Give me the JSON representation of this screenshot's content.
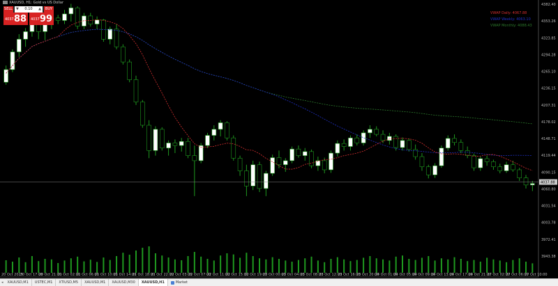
{
  "symbol": "XAUUSD, H1:  Gold vs US Dollar",
  "trade_panel": {
    "sell_label": "SELL",
    "buy_label": "BUY",
    "volume": "0.10",
    "bid_small": "4037",
    "bid_big": "88",
    "ask_small": "4037",
    "ask_big": "99"
  },
  "legend": [
    {
      "text": "VWAP Daily: 4067.88",
      "color": "#d83030"
    },
    {
      "text": "VWAP Weekly: 4063.10",
      "color": "#2030c8"
    },
    {
      "text": "VWAP Monthly: 4088.43",
      "color": "#2c7a2c"
    }
  ],
  "price_axis": {
    "labels": [
      "4382.40",
      "4353.26",
      "4323.85",
      "4294.28",
      "4265.10",
      "4236.15",
      "4207.31",
      "4178.02",
      "4148.71",
      "4119.44",
      "4090.15",
      "4060.80",
      "4031.54",
      "4003.78",
      "3972.41",
      "3943.38"
    ],
    "current_price": "4037.88"
  },
  "time_axis": [
    "20 Oct 2025",
    "20 Oct 17:00",
    "20 Oct 21:00",
    "21 Oct 02:00",
    "21 Oct 06:00",
    "21 Oct 10:00",
    "21 Oct 14:00",
    "21 Oct 18:00",
    "21 Oct 22:00",
    "22 Oct 03:00",
    "22 Oct 07:00",
    "22 Oct 11:00",
    "22 Oct 15:00",
    "22 Oct 19:00",
    "23 Oct 00:00",
    "23 Oct 04:00",
    "23 Oct 08:00",
    "23 Oct 12:00",
    "23 Oct 16:00",
    "23 Oct 20:00",
    "24 Oct 01:00",
    "24 Oct 05:00",
    "24 Oct 09:00",
    "24 Oct 13:00",
    "24 Oct 17:00",
    "24 Oct 21:00",
    "27 Oct 02:00",
    "27 Oct 06:00",
    "27 Oct 10:00"
  ],
  "tabs": [
    "XAUUSD,M1",
    "USTEC,M1",
    "XTIUSD,M5",
    "XAUUSD,M1",
    "XAUUSD,M30",
    "XAUUSD,H1"
  ],
  "active_tab_index": 5,
  "market_tab": "Market",
  "colors": {
    "bull": "#ffffff",
    "bear": "#000000",
    "wick": "#1f9a1f",
    "daily": "#d83030",
    "weekly": "#2030c8",
    "monthly": "#2c7a2c",
    "volume": "#1f9a1f"
  },
  "chart_data": {
    "type": "candlestick",
    "title": "XAUUSD, H1:  Gold vs US Dollar",
    "ylim": [
      3930,
      4392
    ],
    "candles": [
      [
        4235,
        4268,
        4230,
        4260
      ],
      [
        4260,
        4300,
        4255,
        4295
      ],
      [
        4295,
        4330,
        4285,
        4320
      ],
      [
        4320,
        4342,
        4305,
        4335
      ],
      [
        4335,
        4370,
        4325,
        4362
      ],
      [
        4362,
        4365,
        4320,
        4335
      ],
      [
        4335,
        4360,
        4318,
        4355
      ],
      [
        4355,
        4368,
        4340,
        4362
      ],
      [
        4362,
        4368,
        4350,
        4357
      ],
      [
        4357,
        4378,
        4350,
        4370
      ],
      [
        4370,
        4390,
        4355,
        4382
      ],
      [
        4382,
        4385,
        4340,
        4346
      ],
      [
        4346,
        4372,
        4340,
        4366
      ],
      [
        4366,
        4372,
        4345,
        4350
      ],
      [
        4350,
        4365,
        4340,
        4358
      ],
      [
        4358,
        4360,
        4315,
        4320
      ],
      [
        4320,
        4345,
        4310,
        4340
      ],
      [
        4340,
        4350,
        4300,
        4305
      ],
      [
        4305,
        4310,
        4270,
        4275
      ],
      [
        4275,
        4280,
        4235,
        4240
      ],
      [
        4240,
        4248,
        4190,
        4196
      ],
      [
        4196,
        4200,
        4145,
        4150
      ],
      [
        4150,
        4160,
        4085,
        4100
      ],
      [
        4100,
        4148,
        4090,
        4142
      ],
      [
        4142,
        4146,
        4100,
        4105
      ],
      [
        4105,
        4120,
        4090,
        4115
      ],
      [
        4115,
        4122,
        4095,
        4110
      ],
      [
        4110,
        4125,
        4098,
        4118
      ],
      [
        4118,
        4125,
        4085,
        4090
      ],
      [
        4090,
        4110,
        4010,
        4080
      ],
      [
        4080,
        4115,
        4075,
        4110
      ],
      [
        4110,
        4135,
        4105,
        4130
      ],
      [
        4130,
        4150,
        4120,
        4142
      ],
      [
        4142,
        4160,
        4128,
        4155
      ],
      [
        4155,
        4158,
        4120,
        4125
      ],
      [
        4125,
        4130,
        4080,
        4085
      ],
      [
        4085,
        4090,
        4050,
        4060
      ],
      [
        4060,
        4072,
        4010,
        4030
      ],
      [
        4030,
        4080,
        4022,
        4072
      ],
      [
        4072,
        4078,
        4018,
        4025
      ],
      [
        4025,
        4060,
        4010,
        4055
      ],
      [
        4055,
        4092,
        4050,
        4086
      ],
      [
        4086,
        4100,
        4065,
        4072
      ],
      [
        4072,
        4085,
        4058,
        4080
      ],
      [
        4080,
        4108,
        4075,
        4103
      ],
      [
        4103,
        4110,
        4086,
        4090
      ],
      [
        4090,
        4105,
        4080,
        4098
      ],
      [
        4098,
        4102,
        4065,
        4070
      ],
      [
        4070,
        4088,
        4060,
        4080
      ],
      [
        4080,
        4086,
        4055,
        4062
      ],
      [
        4062,
        4100,
        4056,
        4095
      ],
      [
        4095,
        4120,
        4088,
        4114
      ],
      [
        4114,
        4122,
        4100,
        4108
      ],
      [
        4108,
        4130,
        4100,
        4125
      ],
      [
        4125,
        4132,
        4110,
        4115
      ],
      [
        4115,
        4140,
        4110,
        4135
      ],
      [
        4135,
        4150,
        4125,
        4142
      ],
      [
        4142,
        4148,
        4128,
        4132
      ],
      [
        4132,
        4140,
        4115,
        4120
      ],
      [
        4120,
        4135,
        4112,
        4128
      ],
      [
        4128,
        4132,
        4100,
        4106
      ],
      [
        4106,
        4126,
        4100,
        4120
      ],
      [
        4120,
        4124,
        4098,
        4102
      ],
      [
        4102,
        4112,
        4082,
        4088
      ],
      [
        4088,
        4095,
        4060,
        4068
      ],
      [
        4068,
        4072,
        4045,
        4052
      ],
      [
        4052,
        4075,
        4046,
        4070
      ],
      [
        4070,
        4110,
        4066,
        4105
      ],
      [
        4105,
        4130,
        4100,
        4124
      ],
      [
        4124,
        4132,
        4110,
        4116
      ],
      [
        4116,
        4122,
        4095,
        4100
      ],
      [
        4100,
        4108,
        4085,
        4090
      ],
      [
        4090,
        4094,
        4060,
        4066
      ],
      [
        4066,
        4088,
        4060,
        4084
      ],
      [
        4084,
        4090,
        4070,
        4078
      ],
      [
        4078,
        4082,
        4062,
        4068
      ],
      [
        4068,
        4074,
        4055,
        4060
      ],
      [
        4060,
        4078,
        4056,
        4072
      ],
      [
        4072,
        4080,
        4058,
        4062
      ],
      [
        4062,
        4066,
        4040,
        4046
      ],
      [
        4046,
        4052,
        4025,
        4032
      ],
      [
        4032,
        4040,
        4020,
        4035
      ]
    ],
    "volume_ylim": [
      0,
      100
    ],
    "volumes": [
      45,
      40,
      55,
      38,
      60,
      42,
      50,
      48,
      35,
      44,
      52,
      58,
      41,
      47,
      39,
      55,
      46,
      60,
      72,
      65,
      80,
      90,
      95,
      70,
      62,
      55,
      48,
      45,
      60,
      75,
      58,
      50,
      44,
      62,
      70,
      66,
      54,
      72,
      60,
      52,
      48,
      56,
      50,
      44,
      40,
      46,
      52,
      58,
      44,
      38,
      50,
      56,
      48,
      42,
      46,
      54,
      60,
      52,
      48,
      44,
      58,
      62,
      50,
      46,
      54,
      60,
      44,
      52,
      48,
      56,
      50,
      42,
      46,
      40,
      54,
      48,
      44,
      38,
      46,
      52,
      40,
      34
    ]
  }
}
